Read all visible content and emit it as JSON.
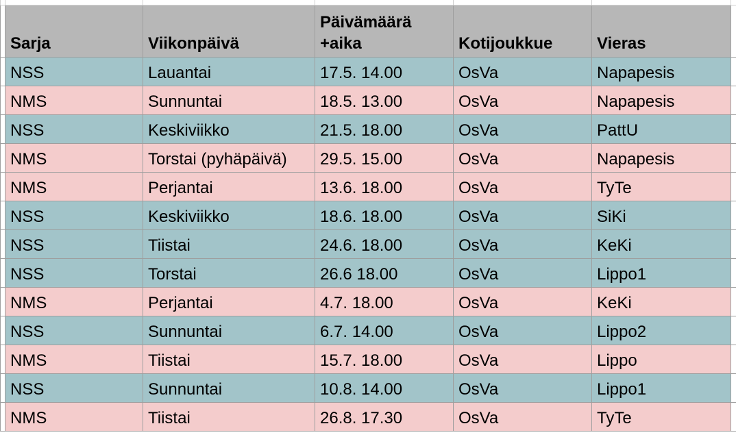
{
  "table": {
    "header": [
      "Sarja",
      "Viikonpäivä",
      "Päivämäärä +aika",
      "Kotijoukkue",
      "Vieras"
    ],
    "header_color": "#b7b7b7",
    "rows": [
      [
        "NSS",
        "Lauantai",
        "17.5. 14.00",
        "OsVa",
        "Napapesis"
      ],
      [
        "NMS",
        "Sunnuntai",
        "18.5. 13.00",
        "OsVa",
        "Napapesis"
      ],
      [
        "NSS",
        "Keskiviikko",
        "21.5. 18.00",
        "OsVa",
        "PattU"
      ],
      [
        "NMS",
        "Torstai (pyhäpäivä)",
        "29.5. 15.00",
        "OsVa",
        "Napapesis"
      ],
      [
        "NMS",
        "Perjantai",
        "13.6. 18.00",
        "OsVa",
        "TyTe"
      ],
      [
        "NSS",
        "Keskiviikko",
        "18.6. 18.00",
        "OsVa",
        "SiKi"
      ],
      [
        "NSS",
        "Tiistai",
        "24.6. 18.00",
        "OsVa",
        "KeKi"
      ],
      [
        "NSS",
        "Torstai",
        "26.6 18.00",
        "OsVa",
        "Lippo1"
      ],
      [
        "NMS",
        "Perjantai",
        "4.7. 18.00",
        "OsVa",
        "KeKi"
      ],
      [
        "NSS",
        "Sunnuntai",
        "6.7. 14.00",
        "OsVa",
        "Lippo2"
      ],
      [
        "NMS",
        "Tiistai",
        "15.7. 18.00",
        "OsVa",
        "Lippo"
      ],
      [
        "NSS",
        "Sunnuntai",
        "10.8. 14.00",
        "OsVa",
        "Lippo1"
      ],
      [
        "NMS",
        "Tiistai",
        "26.8. 17.30",
        "OsVa",
        "TyTe"
      ]
    ],
    "row_colors": [
      "#a2c4c9",
      "#f4cccc",
      "#a2c4c9",
      "#f4cccc",
      "#f4cccc",
      "#a2c4c9",
      "#a2c4c9",
      "#a2c4c9",
      "#f4cccc",
      "#a2c4c9",
      "#f4cccc",
      "#a2c4c9",
      "#f4cccc"
    ]
  }
}
